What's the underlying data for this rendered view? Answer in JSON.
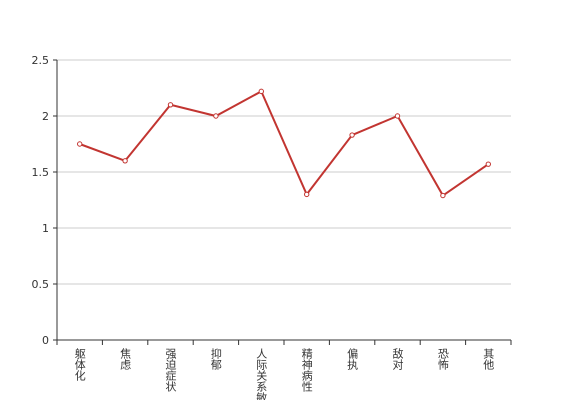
{
  "chart_data": {
    "type": "line",
    "categories": [
      "躯体化",
      "焦虑",
      "强迫症状",
      "抑郁",
      "人际关系敏感",
      "精神病性",
      "偏执",
      "敌对",
      "恐怖",
      "其他"
    ],
    "series": [
      {
        "color": "#c23531",
        "values": [
          1.75,
          1.6,
          2.1,
          2.0,
          2.22,
          1.3,
          1.83,
          2.0,
          1.29,
          1.57
        ]
      }
    ],
    "ylim": [
      0,
      2.5
    ],
    "yticks": [
      0,
      0.5,
      1,
      1.5,
      2,
      2.5
    ],
    "grid": true
  }
}
